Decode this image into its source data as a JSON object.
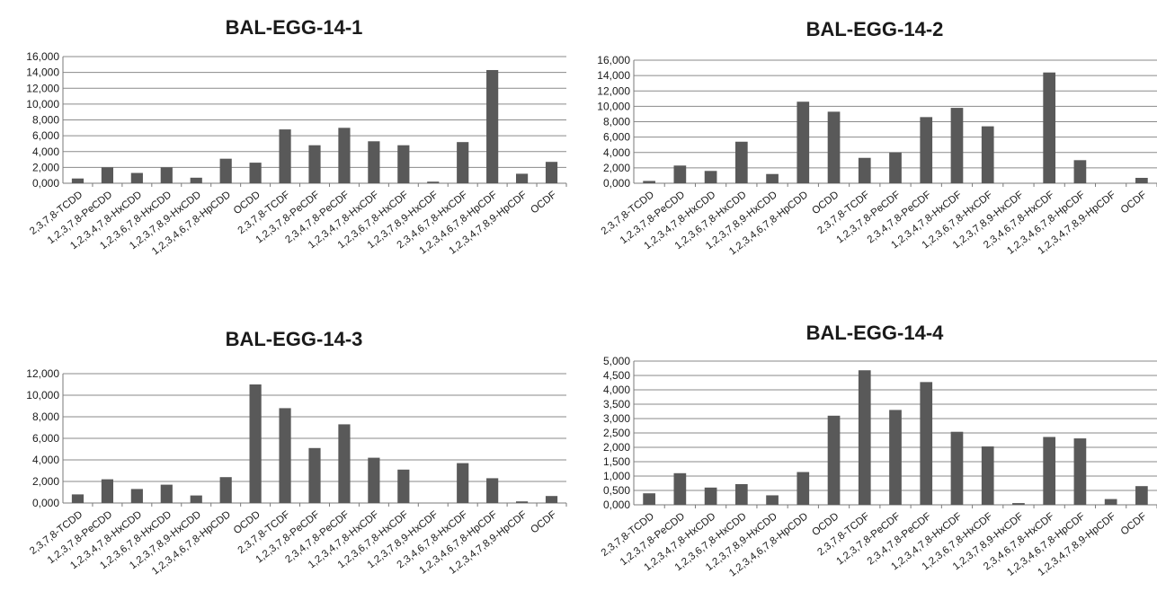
{
  "colors": {
    "bar": "#595959",
    "grid": "#8a8a8a",
    "axis": "#7a7a7a",
    "text": "#1a1a1a"
  },
  "chart_data": [
    {
      "type": "bar",
      "title": "BAL-EGG-14-1",
      "categories": [
        "2,3,7,8-TCDD",
        "1,2,3,7,8-PeCDD",
        "1,2,3,4,7,8-HxCDD",
        "1,2,3,6,7,8-HxCDD",
        "1,2,3,7,8,9-HxCDD",
        "1,2,3,4,6,7,8-HpCDD",
        "OCDD",
        "2,3,7,8-TCDF",
        "1,2,3,7,8-PeCDF",
        "2,3,4,7,8-PeCDF",
        "1,2,3,4,7,8-HxCDF",
        "1,2,3,6,7,8-HxCDF",
        "1,2,3,7,8,9-HxCDF",
        "2,3,4,6,7,8-HxCDF",
        "1,2,3,4,6,7,8-HpCDF",
        "1,2,3,4,7,8,9-HpCDF",
        "OCDF"
      ],
      "values": [
        600,
        2000,
        1300,
        2000,
        700,
        3100,
        2600,
        6800,
        4800,
        7000,
        5300,
        4800,
        200,
        5200,
        14300,
        1200,
        2700
      ],
      "ylim": [
        0,
        16000
      ],
      "yticks": [
        "0,000",
        "2,000",
        "4,000",
        "6,000",
        "8,000",
        "10,000",
        "12,000",
        "14,000",
        "16,000"
      ],
      "xlabel": "",
      "ylabel": "",
      "grid": true
    },
    {
      "type": "bar",
      "title": "BAL-EGG-14-2",
      "categories": [
        "2,3,7,8-TCDD",
        "1,2,3,7,8-PeCDD",
        "1,2,3,4,7,8-HxCDD",
        "1,2,3,6,7,8-HxCDD",
        "1,2,3,7,8,9-HxCDD",
        "1,2,3,4,6,7,8-HpCDD",
        "OCDD",
        "2,3,7,8-TCDF",
        "1,2,3,7,8-PeCDF",
        "2,3,4,7,8-PeCDF",
        "1,2,3,4,7,8-HxCDF",
        "1,2,3,6,7,8-HxCDF",
        "1,2,3,7,8,9-HxCDF",
        "2,3,4,6,7,8-HxCDF",
        "1,2,3,4,6,7,8-HpCDF",
        "1,2,3,4,7,8,9-HpCDF",
        "OCDF"
      ],
      "values": [
        300,
        2300,
        1600,
        5400,
        1200,
        10600,
        9300,
        3300,
        4000,
        8600,
        9800,
        7400,
        0,
        14400,
        3000,
        0,
        700
      ],
      "ylim": [
        0,
        16000
      ],
      "yticks": [
        "0,000",
        "2,000",
        "4,000",
        "6,000",
        "8,000",
        "10,000",
        "12,000",
        "14,000",
        "16,000"
      ],
      "xlabel": "",
      "ylabel": "",
      "grid": true
    },
    {
      "type": "bar",
      "title": "BAL-EGG-14-3",
      "categories": [
        "2,3,7,8-TCDD",
        "1,2,3,7,8-PeCDD",
        "1,2,3,4,7,8-HxCDD",
        "1,2,3,6,7,8-HxCDD",
        "1,2,3,7,8,9-HxCDD",
        "1,2,3,4,6,7,8-HpCDD",
        "OCDD",
        "2,3,7,8-TCDF",
        "1,2,3,7,8-PeCDF",
        "2,3,4,7,8-PeCDF",
        "1,2,3,4,7,8-HxCDF",
        "1,2,3,6,7,8-HxCDF",
        "1,2,3,7,8,9-HxCDF",
        "2,3,4,6,7,8-HxCDF",
        "1,2,3,4,6,7,8-HpCDF",
        "1,2,3,4,7,8,9-HpCDF",
        "OCDF"
      ],
      "values": [
        800,
        2200,
        1300,
        1700,
        700,
        2400,
        11000,
        8800,
        5100,
        7300,
        4200,
        3100,
        0,
        3700,
        2300,
        150,
        650
      ],
      "ylim": [
        0,
        12000
      ],
      "yticks": [
        "0,000",
        "2,000",
        "4,000",
        "6,000",
        "8,000",
        "10,000",
        "12,000"
      ],
      "xlabel": "",
      "ylabel": "",
      "grid": true
    },
    {
      "type": "bar",
      "title": "BAL-EGG-14-4",
      "categories": [
        "2,3,7,8-TCDD",
        "1,2,3,7,8-PeCDD",
        "1,2,3,4,7,8-HxCDD",
        "1,2,3,6,7,8-HxCDD",
        "1,2,3,7,8,9-HxCDD",
        "1,2,3,4,6,7,8-HpCDD",
        "OCDD",
        "2,3,7,8-TCDF",
        "1,2,3,7,8-PeCDF",
        "2,3,4,7,8-PeCDF",
        "1,2,3,4,7,8-HxCDF",
        "1,2,3,6,7,8-HxCDF",
        "1,2,3,7,8,9-HxCDF",
        "2,3,4,6,7,8-HxCDF",
        "1,2,3,4,6,7,8-HpCDF",
        "1,2,3,4,7,8,9-HpCDF",
        "OCDF"
      ],
      "values": [
        400,
        1100,
        600,
        720,
        330,
        1140,
        3100,
        4680,
        3300,
        4270,
        2540,
        2030,
        60,
        2360,
        2310,
        200,
        650
      ],
      "ylim": [
        0,
        5000
      ],
      "yticks": [
        "0,000",
        "0,500",
        "1,000",
        "1,500",
        "2,000",
        "2,500",
        "3,000",
        "3,500",
        "4,000",
        "4,500",
        "5,000"
      ],
      "xlabel": "",
      "ylabel": "",
      "grid": true
    }
  ]
}
